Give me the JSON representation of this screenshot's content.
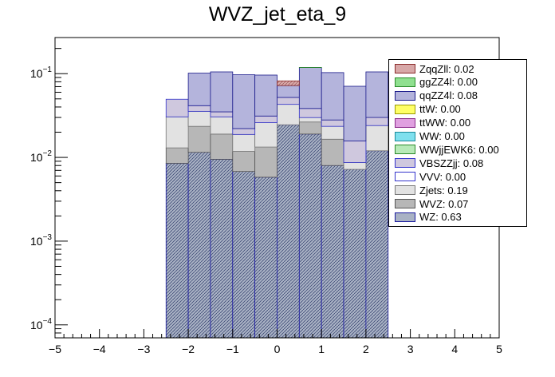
{
  "chart_data": {
    "type": "bar",
    "stacked": true,
    "title": "WVZ_jet_eta_9",
    "xlabel": "",
    "ylabel": "",
    "x_range": [
      -5,
      5
    ],
    "y_scale": "log",
    "y_range": [
      7e-05,
      0.27
    ],
    "x_ticks": [
      "−5",
      "−4",
      "−3",
      "−2",
      "−1",
      "0",
      "1",
      "2",
      "3",
      "4",
      "5"
    ],
    "y_tick_labels": [
      {
        "base": "10",
        "exp": "−4",
        "value": 0.0001
      },
      {
        "base": "10",
        "exp": "−3",
        "value": 0.001
      },
      {
        "base": "10",
        "exp": "−2",
        "value": 0.01
      },
      {
        "base": "10",
        "exp": "−1",
        "value": 0.1
      }
    ],
    "bin_edges": [
      -2.5,
      -2.0,
      -1.5,
      -1.0,
      -0.5,
      0.0,
      0.5,
      1.0,
      1.5,
      2.0,
      2.5
    ],
    "series": [
      {
        "name": "WZ",
        "legend": "WZ: 0.63",
        "fill": "#a9b2c4",
        "stroke": "#1a1aa0",
        "values": [
          0.0085,
          0.0115,
          0.0095,
          0.0068,
          0.0058,
          0.0245,
          0.019,
          0.008,
          0.0072,
          0.012
        ]
      },
      {
        "name": "WVZ",
        "legend": "WVZ: 0.07",
        "fill": "#b7b7b7",
        "stroke": "#555555",
        "values": [
          0.0045,
          0.012,
          0.0095,
          0.005,
          0.0075,
          0.0,
          0.0075,
          0.0085,
          0.0,
          0.0
        ]
      },
      {
        "name": "Zjets",
        "legend": "Zjets: 0.19",
        "fill": "#e2e2e2",
        "stroke": "#777777",
        "values": [
          0.0175,
          0.012,
          0.0115,
          0.007,
          0.0127,
          0.0185,
          0.0034,
          0.007,
          0.0015,
          0.012
        ]
      },
      {
        "name": "VVV",
        "legend": "VVV: 0.00",
        "fill": "#ffffff",
        "stroke": "#3333cc",
        "values": [
          0.0,
          0.0,
          0.0,
          0.0,
          0.0,
          0.0,
          0.0,
          0.0,
          0.0,
          0.0
        ]
      },
      {
        "name": "VBSZZjj",
        "legend": "VBSZZjj: 0.08",
        "fill": "#cfc8de",
        "stroke": "#3333cc",
        "values": [
          0.019,
          0.006,
          0.0045,
          0.0033,
          0.0052,
          0.009,
          0.0085,
          0.0045,
          0.007,
          0.006
        ]
      },
      {
        "name": "WWjjEWK6",
        "legend": "WWjjEWK6: 0.00",
        "fill": "#b8eab8",
        "stroke": "#2a8a2a",
        "values": [
          0.0,
          0.0,
          0.0,
          0.0,
          0.0,
          0.0,
          0.0,
          0.0,
          0.0,
          0.0
        ]
      },
      {
        "name": "WW",
        "legend": "WW: 0.00",
        "fill": "#7fe0ee",
        "stroke": "#1a8a9a",
        "values": [
          0.0,
          0.0,
          0.0,
          0.0,
          0.0,
          0.0,
          0.0,
          0.0,
          0.0,
          0.0
        ]
      },
      {
        "name": "ttWW",
        "legend": "ttWW: 0.00",
        "fill": "#e0a0e0",
        "stroke": "#8a2a8a",
        "values": [
          0.0,
          0.0,
          0.0,
          0.0,
          0.0,
          0.0,
          0.0,
          0.0,
          0.0,
          0.0
        ]
      },
      {
        "name": "ttW",
        "legend": "ttW: 0.00",
        "fill": "#ffff66",
        "stroke": "#9a9a00",
        "values": [
          0.0,
          0.0,
          0.0,
          0.0,
          0.0,
          0.0,
          0.0,
          0.0,
          0.0,
          0.0
        ]
      },
      {
        "name": "qqZZ4l",
        "legend": "qqZZ4l: 0.08",
        "fill": "#b4b4dc",
        "stroke": "#1a1a8a",
        "values": [
          0.0,
          0.06,
          0.07,
          0.075,
          0.065,
          0.02,
          0.08,
          0.075,
          0.055,
          0.075
        ]
      },
      {
        "name": "ggZZ4l",
        "legend": "ggZZ4l: 0.00",
        "fill": "#8fe08f",
        "stroke": "#2a8a2a",
        "values": [
          0.0,
          0.0,
          0.0,
          0.0,
          0.0,
          0.0,
          0.00026,
          0.0,
          0.0,
          0.0
        ]
      },
      {
        "name": "ZqqZll",
        "legend": "ZqqZll: 0.02",
        "fill": "#d8a8a8",
        "stroke": "#8a2a2a",
        "values": [
          0.0,
          0.0,
          0.0,
          0.0,
          0.0,
          0.01,
          0.0,
          0.0,
          0.0,
          0.0
        ]
      }
    ],
    "legend_order": [
      "ZqqZll",
      "ggZZ4l",
      "qqZZ4l",
      "ttW",
      "ttWW",
      "WW",
      "WWjjEWK6",
      "VBSZZjj",
      "VVV",
      "Zjets",
      "WVZ",
      "WZ"
    ],
    "legend_position": "top-right",
    "grid": false
  }
}
